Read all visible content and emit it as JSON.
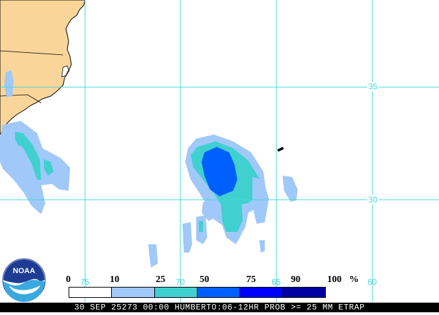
{
  "map": {
    "colors": {
      "land": "#fad59a",
      "water": "#ffffff",
      "coast": "#000000",
      "grid": "#40d8d8",
      "band_10_25": "#a0c8f8",
      "band_25_50": "#40d0d0",
      "band_50_75": "#0060ff",
      "band_75_90": "#0000ff",
      "band_90_100": "#0000a0"
    },
    "grid_labels_lat": [
      "35",
      "30"
    ],
    "grid_labels_lon": [
      "75",
      "70",
      "65",
      "60"
    ]
  },
  "legend": {
    "values": [
      "0",
      "10",
      "25",
      "50",
      "75",
      "90",
      "100"
    ],
    "unit": "%",
    "colors": [
      "#ffffff",
      "#a0c8f8",
      "#40d0d0",
      "#0060ff",
      "#0000ff",
      "#0000a0"
    ]
  },
  "logo": {
    "text": "NOAA",
    "icon": "noaa-logo-icon"
  },
  "caption": "30 SEP 25273 00:00 HUMBERTO:06-12HR PROB >= 25 MM ETRAP"
}
